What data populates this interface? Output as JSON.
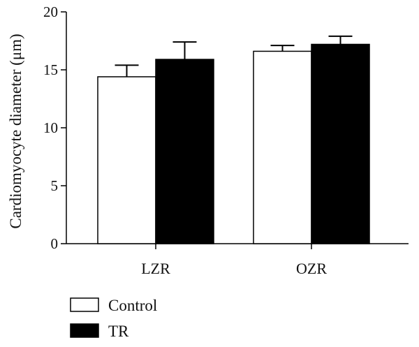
{
  "chart_data": {
    "type": "bar",
    "categories": [
      "LZR",
      "OZR"
    ],
    "series": [
      {
        "name": "Control",
        "values": [
          14.4,
          16.6
        ],
        "errors": [
          1.0,
          0.5
        ],
        "color": "#ffffff"
      },
      {
        "name": "TR",
        "values": [
          15.9,
          17.2
        ],
        "errors": [
          1.5,
          0.7
        ],
        "color": "#000000"
      }
    ],
    "ylabel": "Cardiomyocyte diameter (μm)",
    "ylim": [
      0,
      20
    ],
    "yticks": [
      "0",
      "5",
      "10",
      "15",
      "20"
    ],
    "error_bars": "upper",
    "grid": false,
    "legend_position": "bottom-left"
  }
}
